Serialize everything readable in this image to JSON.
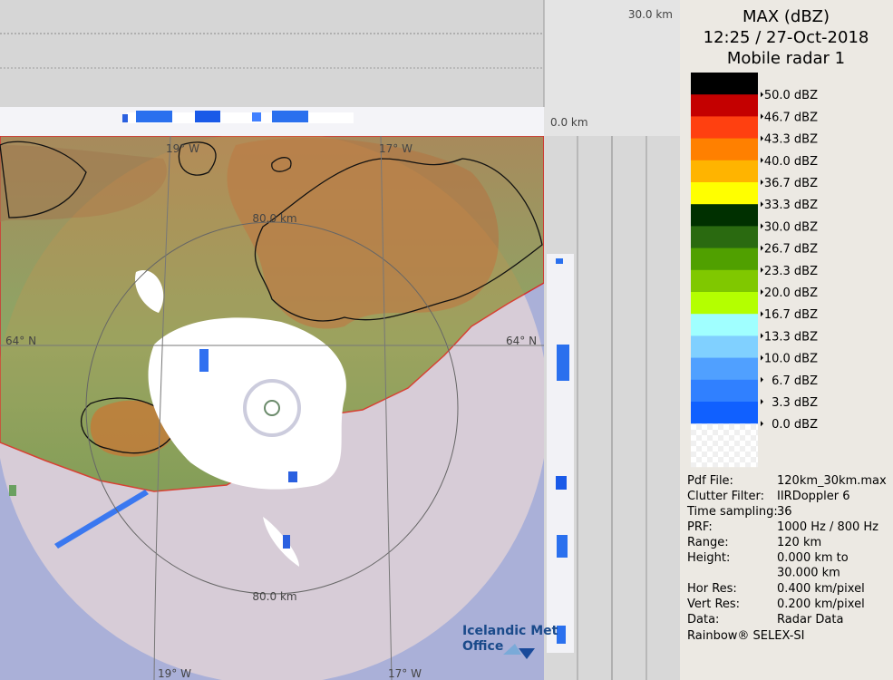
{
  "header": {
    "title": "MAX (dBZ)",
    "time": "12:25 / 27-Oct-2018",
    "radar": "Mobile radar 1"
  },
  "map": {
    "top_scale_top": "30.0 km",
    "top_scale_bottom": "0.0 km",
    "ring_label_top": "80.0 km",
    "ring_label_bottom": "80.0 km",
    "lon_top_left": "19° W",
    "lon_top_right": "17° W",
    "lon_bottom_left": "19° W",
    "lon_bottom_right": "17° W",
    "lat_left": "64° N",
    "lat_right": "64° N",
    "logo_line1": "Icelandic Met",
    "logo_line2": "Office"
  },
  "legend": [
    {
      "label": "50.0 dBZ",
      "color": "#000000"
    },
    {
      "label": "46.7 dBZ",
      "color": "#c40000"
    },
    {
      "label": "43.3 dBZ",
      "color": "#ff4010"
    },
    {
      "label": "40.0 dBZ",
      "color": "#ff8000"
    },
    {
      "label": "36.7 dBZ",
      "color": "#ffb400"
    },
    {
      "label": "33.3 dBZ",
      "color": "#ffff00"
    },
    {
      "label": "30.0 dBZ",
      "color": "#003000"
    },
    {
      "label": "26.7 dBZ",
      "color": "#2a6a10"
    },
    {
      "label": "23.3 dBZ",
      "color": "#50a000"
    },
    {
      "label": "20.0 dBZ",
      "color": "#80c800"
    },
    {
      "label": "16.7 dBZ",
      "color": "#b4ff00"
    },
    {
      "label": "13.3 dBZ",
      "color": "#a0ffff"
    },
    {
      "label": "10.0 dBZ",
      "color": "#80d0ff"
    },
    {
      "label": "6.7 dBZ",
      "color": "#50a0ff"
    },
    {
      "label": "3.3 dBZ",
      "color": "#3080ff"
    },
    {
      "label": "0.0 dBZ",
      "color": "#1060ff"
    }
  ],
  "info": [
    {
      "label": "Pdf File:",
      "value": [
        "120km_30km.max"
      ]
    },
    {
      "label": "Clutter Filter:",
      "value": [
        "IIRDoppler 6"
      ]
    },
    {
      "label": "Time sampling:",
      "value": [
        "36"
      ]
    },
    {
      "label": "PRF:",
      "value": [
        "1000 Hz / 800 Hz"
      ]
    },
    {
      "label": "Range:",
      "value": [
        "120 km"
      ]
    },
    {
      "label": "Height:",
      "value": [
        "0.000 km to",
        "30.000 km"
      ]
    },
    {
      "label": "Hor Res:",
      "value": [
        "0.400 km/pixel"
      ]
    },
    {
      "label": "Vert Res:",
      "value": [
        "0.200 km/pixel"
      ]
    },
    {
      "label": "Data:",
      "value": [
        "Radar Data"
      ]
    }
  ],
  "footer": "Rainbow® SELEX-SI"
}
